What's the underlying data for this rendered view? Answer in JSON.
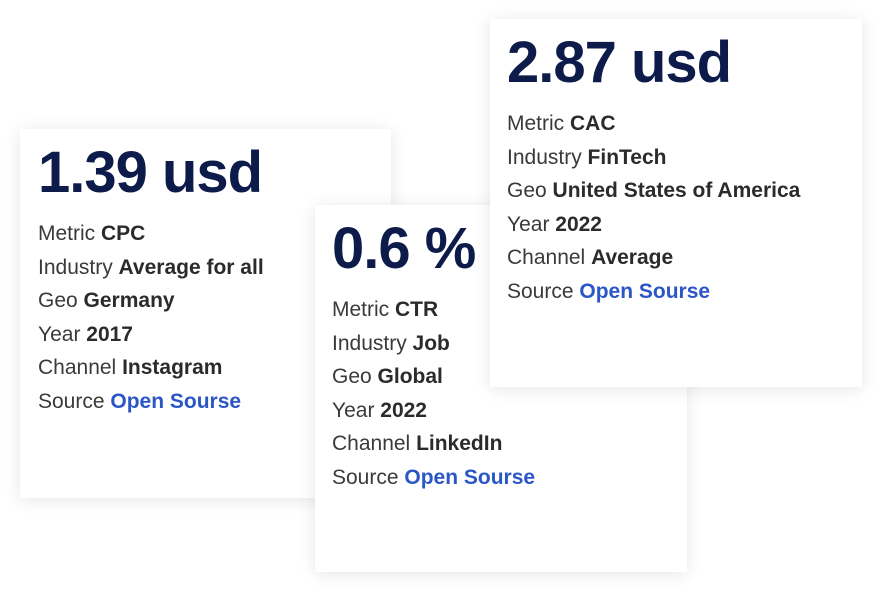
{
  "cards": [
    {
      "value": "1.39 usd",
      "rows": {
        "metric": {
          "label": "Metric",
          "value": "CPC"
        },
        "industry": {
          "label": "Industry",
          "value": "Average for all"
        },
        "geo": {
          "label": "Geo",
          "value": "Germany"
        },
        "year": {
          "label": "Year",
          "value": "2017"
        },
        "channel": {
          "label": "Channel",
          "value": "Instagram"
        },
        "source": {
          "label": "Source",
          "value": "Open Sourse"
        }
      }
    },
    {
      "value": "0.6 %",
      "rows": {
        "metric": {
          "label": "Metric",
          "value": "CTR"
        },
        "industry": {
          "label": "Industry",
          "value": "Job"
        },
        "geo": {
          "label": "Geo",
          "value": "Global"
        },
        "year": {
          "label": "Year",
          "value": "2022"
        },
        "channel": {
          "label": "Channel",
          "value": "LinkedIn"
        },
        "source": {
          "label": "Source",
          "value": "Open Sourse"
        }
      }
    },
    {
      "value": "2.87 usd",
      "rows": {
        "metric": {
          "label": "Metric",
          "value": "CAC"
        },
        "industry": {
          "label": "Industry",
          "value": "FinTech"
        },
        "geo": {
          "label": "Geo",
          "value": "United States of America"
        },
        "year": {
          "label": "Year",
          "value": "2022"
        },
        "channel": {
          "label": "Channel",
          "value": "Average"
        },
        "source": {
          "label": "Source",
          "value": "Open Sourse"
        }
      }
    }
  ],
  "colors": {
    "value_text": "#0d1b4b",
    "label_text": "#3a3a3a",
    "link": "#2a56c6"
  }
}
